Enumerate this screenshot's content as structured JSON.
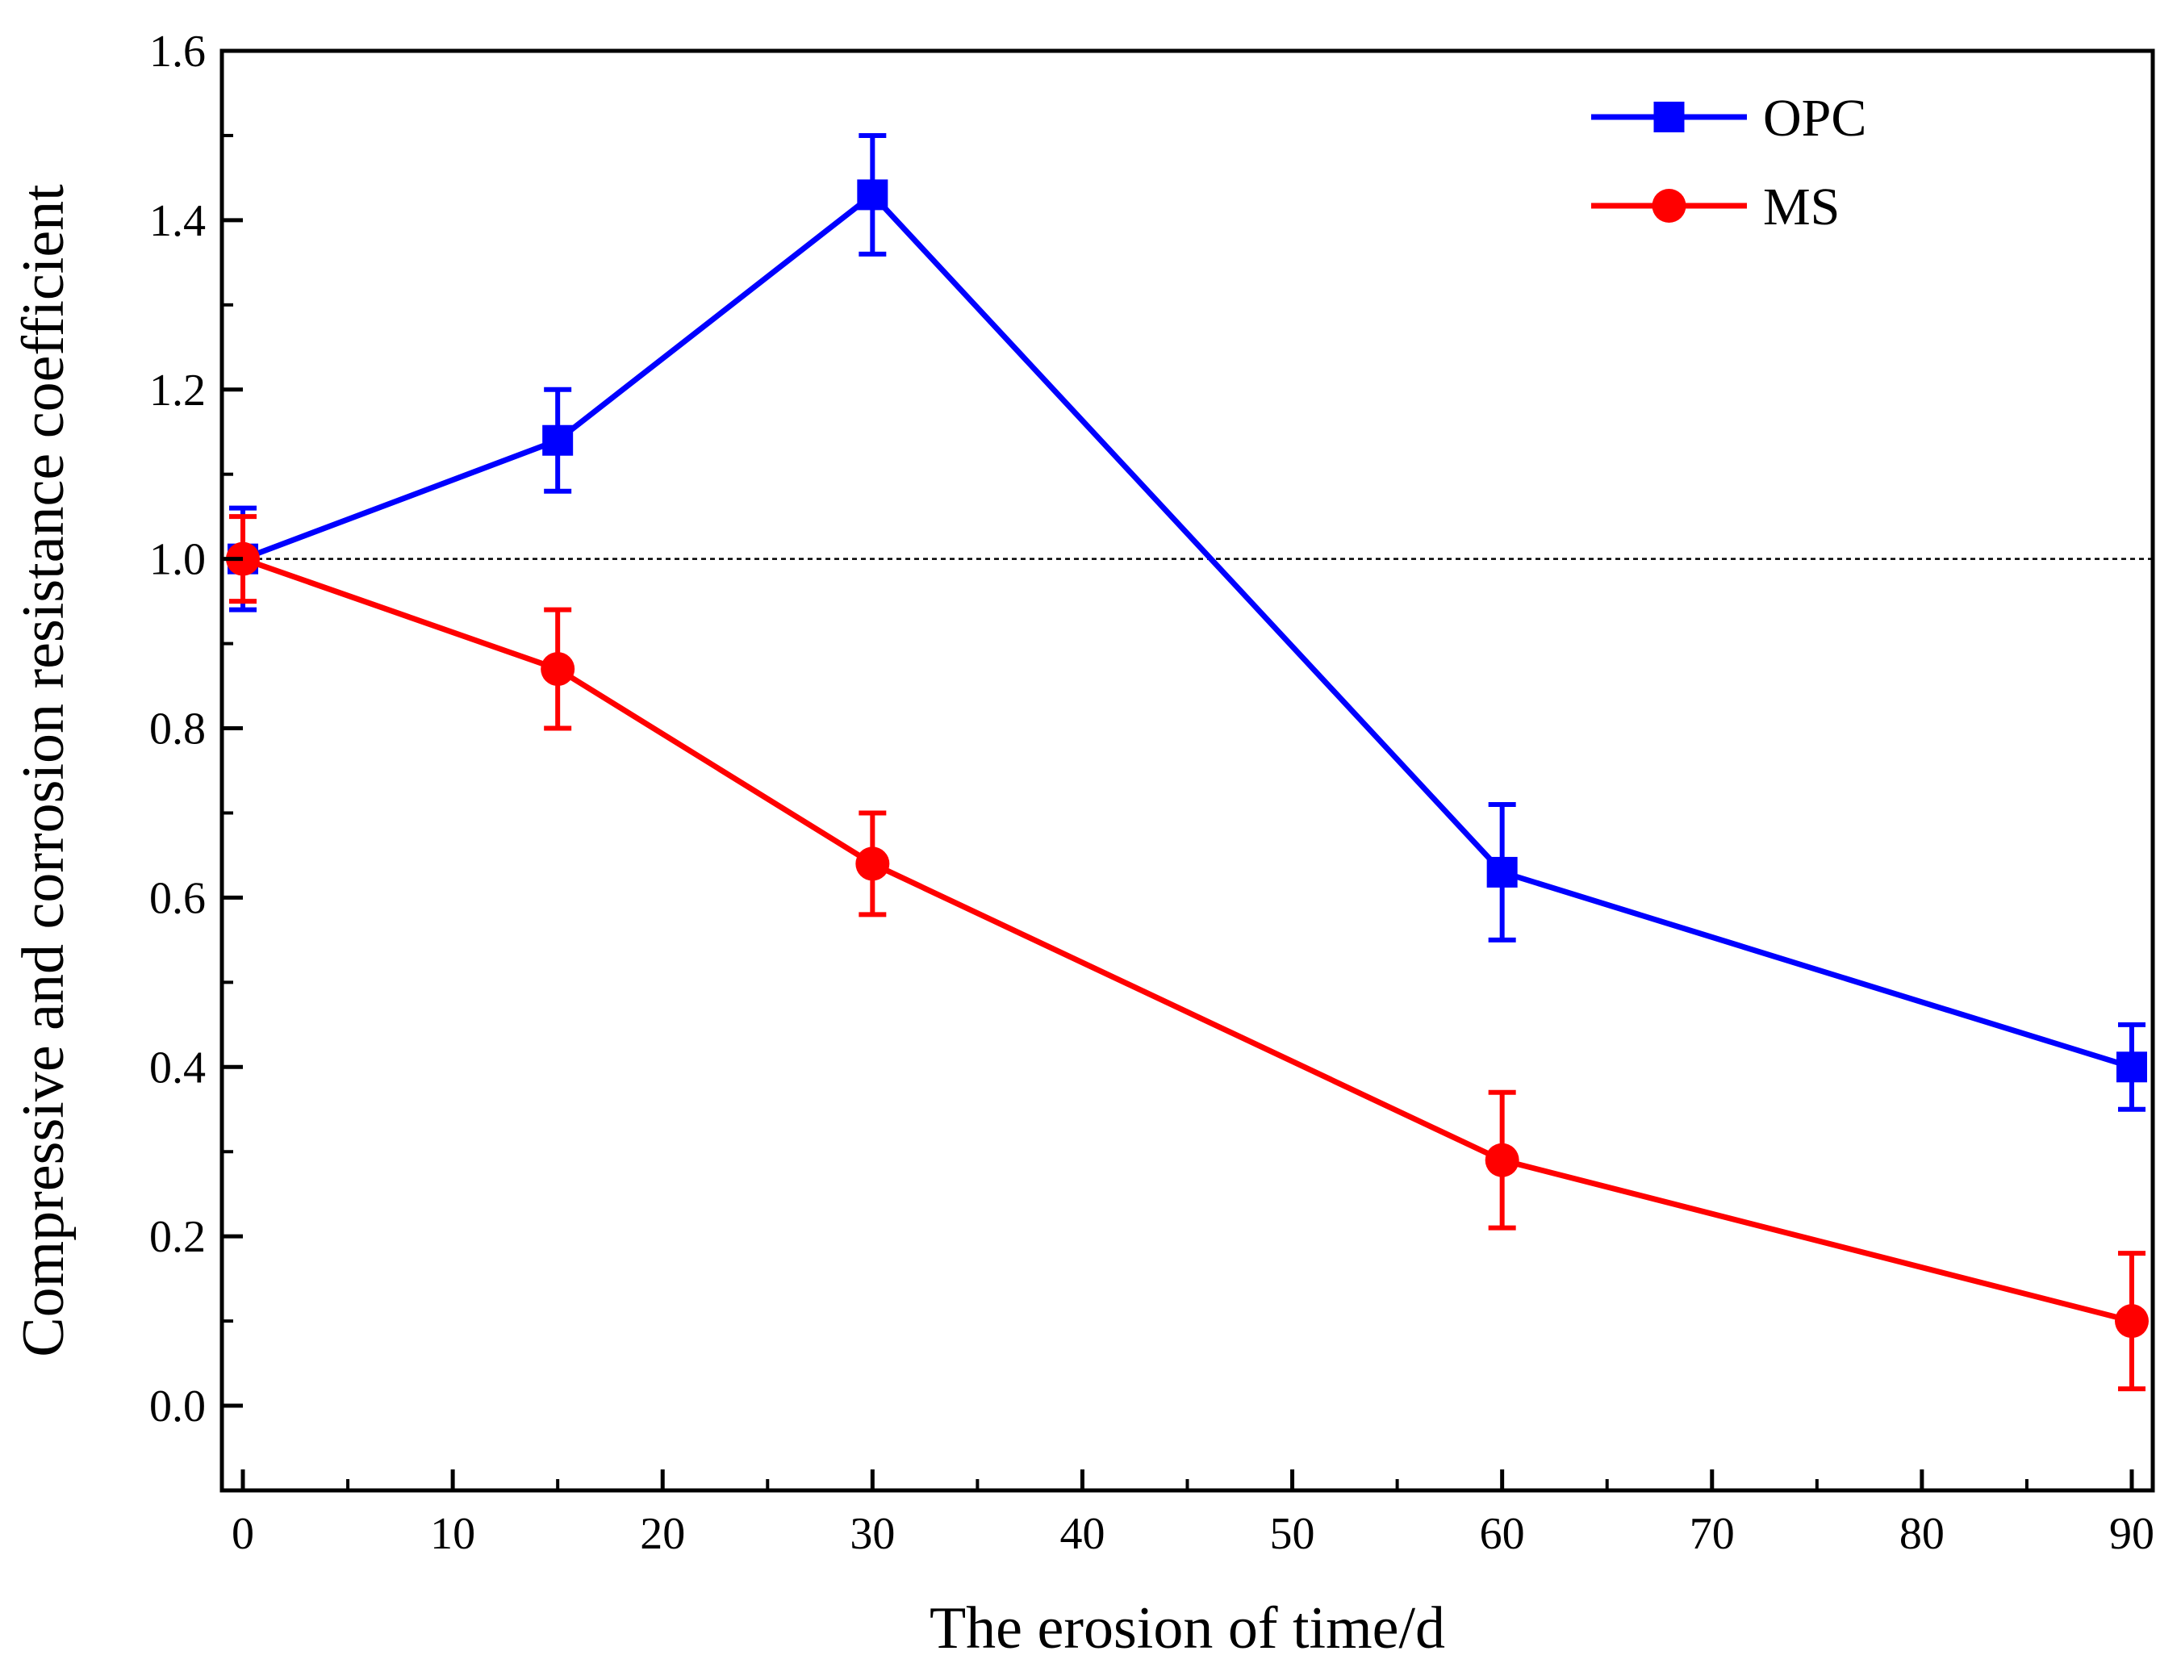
{
  "chart_data": {
    "type": "line",
    "title": "",
    "xlabel": "The erosion of time/d",
    "ylabel": "Compressive and corrosion resistance coefficient",
    "xlim": [
      -1,
      91
    ],
    "ylim": [
      -0.1,
      1.6
    ],
    "x_ticks": [
      0,
      10,
      20,
      30,
      40,
      50,
      60,
      70,
      80,
      90
    ],
    "x_tick_labels": [
      "0",
      "10",
      "20",
      "30",
      "40",
      "50",
      "60",
      "70",
      "80",
      "90"
    ],
    "y_ticks": [
      0.0,
      0.2,
      0.4,
      0.6,
      0.8,
      1.0,
      1.2,
      1.4,
      1.6
    ],
    "y_tick_labels": [
      "0.0",
      "0.2",
      "0.4",
      "0.6",
      "0.8",
      "1.0",
      "1.2",
      "1.4",
      "1.6"
    ],
    "reference_line": {
      "y": 1.0,
      "style": "dotted"
    },
    "legend_position": "top-right",
    "series": [
      {
        "name": "OPC",
        "color": "#0000ff",
        "marker": "square",
        "x": [
          0,
          15,
          30,
          60,
          90
        ],
        "y": [
          1.0,
          1.14,
          1.43,
          0.63,
          0.4
        ],
        "error": [
          0.06,
          0.06,
          0.07,
          0.08,
          0.05
        ]
      },
      {
        "name": "MS",
        "color": "#ff0000",
        "marker": "circle",
        "x": [
          0,
          15,
          30,
          60,
          90
        ],
        "y": [
          1.0,
          0.87,
          0.64,
          0.29,
          0.1
        ],
        "error": [
          0.05,
          0.07,
          0.06,
          0.08,
          0.08
        ]
      }
    ]
  }
}
